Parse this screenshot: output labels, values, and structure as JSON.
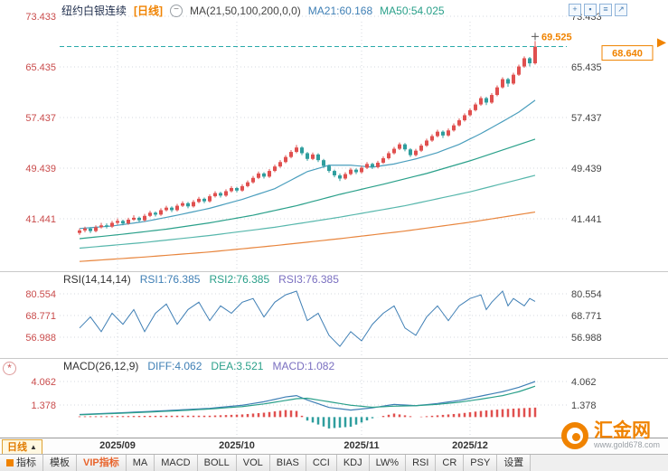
{
  "header": {
    "symbol": "纽约白银连续",
    "period_tag": "[日线]",
    "zoom_out_glyph": "−",
    "ma_settings": "MA(21,50,100,200,0,0)",
    "ma21_label": "MA21:60.168",
    "ma50_label": "MA50:54.025",
    "icons": [
      {
        "name": "crosshair-icon",
        "glyph": "+"
      },
      {
        "name": "grid-view-icon",
        "glyph": "▪"
      },
      {
        "name": "compare-icon",
        "glyph": "≡"
      },
      {
        "name": "expand-icon",
        "glyph": "↗"
      }
    ]
  },
  "rsi_header": {
    "title": "RSI(14,14,14)",
    "rsi1": "RSI1:76.385",
    "rsi2": "RSI2:76.385",
    "rsi3": "RSI3:76.385"
  },
  "macd_header": {
    "title": "MACD(26,12,9)",
    "diff": "DIFF:4.062",
    "dea": "DEA:3.521",
    "macd": "MACD:1.082"
  },
  "left_panel_icon_glyph": "*",
  "xaxis": {
    "period_button": "日线",
    "period_arrow": "▲"
  },
  "bottom_tabs": [
    {
      "label": "指标",
      "icon": "indicator-grid-icon"
    },
    {
      "label": "模板"
    },
    {
      "label": "VIP指标",
      "accent": true
    },
    {
      "label": "MA"
    },
    {
      "label": "MACD"
    },
    {
      "label": "BOLL"
    },
    {
      "label": "VOL"
    },
    {
      "label": "BIAS"
    },
    {
      "label": "CCI"
    },
    {
      "label": "KDJ"
    },
    {
      "label": "LW%"
    },
    {
      "label": "RSI"
    },
    {
      "label": "CR"
    },
    {
      "label": "PSY"
    },
    {
      "label": "设置"
    }
  ],
  "logo": {
    "name": "汇金网",
    "url": "www.gold678.com"
  },
  "colors": {
    "up": "#e0504f",
    "down": "#2f9e9e",
    "accent": "#f08300",
    "axis_left": "#c94b4b",
    "axis_right": "#444444",
    "grid": "#d4d9df",
    "last_line": "#2aa9a9",
    "rsi": "#3f7fb5",
    "diff": "#3f7fb5",
    "dea": "#2aa08a"
  },
  "chart_data": {
    "type": "candlestick",
    "title": "纽约白银连续 日线",
    "symbol": "纽约白银连续",
    "period": "日线",
    "y_ticks_main": [
      73.433,
      65.435,
      57.437,
      49.439,
      41.441
    ],
    "y_ticks_rsi": [
      80.554,
      68.771,
      56.988
    ],
    "y_ticks_macd": [
      4.062,
      1.378
    ],
    "last_price": 68.64,
    "session_high": 69.525,
    "ma_values": {
      "MA21": 60.168,
      "MA50": 54.025
    },
    "rsi_values": {
      "RSI1": 76.385,
      "RSI2": 76.385,
      "RSI3": 76.385
    },
    "macd_values": {
      "DIFF": 4.062,
      "DEA": 3.521,
      "MACD": 1.082
    },
    "month_labels": [
      "2025/09",
      "2025/10",
      "2025/11",
      "2025/12"
    ],
    "month_gridline_indices": [
      7,
      29,
      52,
      72
    ],
    "candles": [
      [
        39.2,
        39.9,
        38.9,
        39.6
      ],
      [
        39.6,
        40.2,
        39.3,
        39.9
      ],
      [
        39.9,
        40.1,
        39.2,
        39.5
      ],
      [
        39.5,
        40.4,
        39.3,
        40.1
      ],
      [
        40.1,
        40.8,
        39.9,
        40.4
      ],
      [
        40.4,
        40.7,
        39.9,
        40.2
      ],
      [
        40.2,
        41.1,
        40.0,
        40.8
      ],
      [
        40.8,
        41.5,
        40.5,
        41.1
      ],
      [
        41.1,
        41.3,
        40.4,
        40.7
      ],
      [
        40.7,
        41.6,
        40.5,
        41.3
      ],
      [
        41.3,
        42.0,
        41.1,
        41.6
      ],
      [
        41.6,
        41.8,
        40.9,
        41.2
      ],
      [
        41.2,
        42.2,
        41.0,
        41.9
      ],
      [
        41.9,
        42.7,
        41.7,
        42.4
      ],
      [
        42.4,
        42.6,
        41.8,
        42.1
      ],
      [
        42.1,
        43.1,
        41.9,
        42.8
      ],
      [
        42.8,
        43.5,
        42.6,
        43.2
      ],
      [
        43.2,
        43.4,
        42.5,
        42.8
      ],
      [
        42.8,
        43.8,
        42.6,
        43.5
      ],
      [
        43.5,
        44.2,
        43.3,
        43.9
      ],
      [
        43.9,
        44.1,
        43.1,
        43.4
      ],
      [
        43.4,
        44.4,
        43.2,
        44.1
      ],
      [
        44.1,
        44.9,
        43.9,
        44.6
      ],
      [
        44.6,
        44.8,
        43.9,
        44.2
      ],
      [
        44.2,
        45.3,
        44.0,
        45.0
      ],
      [
        45.0,
        45.8,
        44.8,
        45.5
      ],
      [
        45.5,
        45.7,
        44.8,
        45.1
      ],
      [
        45.1,
        46.1,
        44.9,
        45.8
      ],
      [
        45.8,
        46.6,
        45.6,
        46.3
      ],
      [
        46.3,
        46.5,
        45.6,
        45.9
      ],
      [
        45.9,
        46.9,
        45.7,
        46.6
      ],
      [
        46.6,
        47.5,
        46.4,
        47.2
      ],
      [
        47.2,
        48.2,
        47.0,
        47.9
      ],
      [
        47.9,
        48.9,
        47.7,
        48.6
      ],
      [
        48.6,
        48.8,
        47.8,
        48.1
      ],
      [
        48.1,
        49.3,
        47.9,
        49.0
      ],
      [
        49.0,
        50.0,
        48.8,
        49.7
      ],
      [
        49.7,
        50.7,
        49.5,
        50.4
      ],
      [
        50.4,
        51.5,
        50.2,
        51.2
      ],
      [
        51.2,
        52.3,
        51.0,
        52.0
      ],
      [
        52.0,
        53.1,
        51.8,
        52.7
      ],
      [
        52.7,
        52.9,
        51.5,
        51.8
      ],
      [
        51.8,
        52.0,
        50.6,
        50.9
      ],
      [
        50.9,
        51.9,
        50.7,
        51.6
      ],
      [
        51.6,
        51.8,
        50.4,
        50.7
      ],
      [
        50.7,
        50.9,
        49.5,
        49.8
      ],
      [
        49.8,
        50.0,
        48.7,
        49.0
      ],
      [
        49.0,
        49.2,
        48.0,
        48.3
      ],
      [
        48.3,
        48.6,
        47.4,
        47.8
      ],
      [
        47.8,
        48.8,
        47.6,
        48.5
      ],
      [
        48.5,
        49.5,
        48.3,
        49.2
      ],
      [
        49.2,
        49.4,
        48.5,
        48.8
      ],
      [
        48.8,
        49.8,
        48.6,
        49.5
      ],
      [
        49.5,
        50.4,
        49.3,
        50.1
      ],
      [
        50.1,
        50.3,
        49.3,
        49.6
      ],
      [
        49.6,
        50.6,
        49.4,
        50.3
      ],
      [
        50.3,
        51.3,
        50.1,
        51.0
      ],
      [
        51.0,
        52.1,
        50.8,
        51.8
      ],
      [
        51.8,
        52.8,
        51.6,
        52.5
      ],
      [
        52.5,
        53.5,
        52.3,
        53.2
      ],
      [
        53.2,
        53.4,
        52.1,
        52.4
      ],
      [
        52.4,
        52.6,
        51.2,
        51.5
      ],
      [
        51.5,
        52.5,
        51.3,
        52.2
      ],
      [
        52.2,
        53.3,
        52.0,
        53.0
      ],
      [
        53.0,
        54.1,
        52.8,
        53.8
      ],
      [
        53.8,
        54.8,
        53.6,
        54.5
      ],
      [
        54.5,
        55.5,
        54.3,
        55.2
      ],
      [
        55.2,
        55.4,
        54.2,
        54.6
      ],
      [
        54.6,
        55.7,
        54.4,
        55.4
      ],
      [
        55.4,
        56.5,
        55.2,
        56.2
      ],
      [
        56.2,
        57.3,
        56.0,
        57.0
      ],
      [
        57.0,
        58.1,
        56.8,
        57.8
      ],
      [
        57.8,
        58.9,
        57.6,
        58.6
      ],
      [
        58.6,
        59.8,
        58.4,
        59.5
      ],
      [
        59.5,
        60.8,
        59.3,
        60.5
      ],
      [
        60.5,
        60.7,
        59.4,
        59.8
      ],
      [
        59.8,
        61.3,
        59.6,
        61.0
      ],
      [
        61.0,
        62.5,
        60.8,
        62.2
      ],
      [
        62.2,
        63.8,
        62.0,
        63.5
      ],
      [
        63.5,
        63.7,
        62.3,
        62.8
      ],
      [
        62.8,
        64.5,
        62.6,
        64.2
      ],
      [
        64.2,
        65.8,
        64.0,
        65.5
      ],
      [
        65.5,
        67.1,
        65.3,
        66.8
      ],
      [
        66.8,
        67.0,
        65.5,
        66.0
      ],
      [
        66.0,
        69.525,
        65.8,
        68.64
      ]
    ],
    "moving_averages": [
      {
        "name": "MA21",
        "color": "#4a9ebd",
        "points": [
          [
            0,
            39.9
          ],
          [
            6,
            40.3
          ],
          [
            12,
            41.0
          ],
          [
            18,
            42.0
          ],
          [
            24,
            43.1
          ],
          [
            30,
            44.5
          ],
          [
            36,
            46.2
          ],
          [
            42,
            48.9
          ],
          [
            46,
            49.9
          ],
          [
            50,
            49.9
          ],
          [
            54,
            49.6
          ],
          [
            58,
            50.1
          ],
          [
            62,
            50.9
          ],
          [
            66,
            51.9
          ],
          [
            70,
            53.2
          ],
          [
            74,
            54.9
          ],
          [
            78,
            56.8
          ],
          [
            81,
            58.3
          ],
          [
            84,
            60.168
          ]
        ]
      },
      {
        "name": "MA50",
        "color": "#2aa08a",
        "points": [
          [
            0,
            38.3
          ],
          [
            8,
            39.0
          ],
          [
            16,
            39.8
          ],
          [
            24,
            40.8
          ],
          [
            32,
            42.0
          ],
          [
            40,
            43.5
          ],
          [
            48,
            45.3
          ],
          [
            56,
            46.9
          ],
          [
            64,
            48.6
          ],
          [
            72,
            50.6
          ],
          [
            78,
            52.3
          ],
          [
            84,
            54.025
          ]
        ]
      },
      {
        "name": "MA100",
        "color": "#57b7ac",
        "points": [
          [
            0,
            36.8
          ],
          [
            12,
            37.7
          ],
          [
            24,
            38.8
          ],
          [
            36,
            40.1
          ],
          [
            48,
            41.7
          ],
          [
            60,
            43.5
          ],
          [
            72,
            45.7
          ],
          [
            84,
            48.3
          ]
        ]
      },
      {
        "name": "MA200",
        "color": "#e8853d",
        "points": [
          [
            0,
            34.7
          ],
          [
            12,
            35.4
          ],
          [
            24,
            36.2
          ],
          [
            36,
            37.2
          ],
          [
            48,
            38.3
          ],
          [
            60,
            39.5
          ],
          [
            72,
            40.9
          ],
          [
            84,
            42.5
          ]
        ]
      }
    ],
    "rsi_points": [
      [
        0,
        62
      ],
      [
        2,
        68
      ],
      [
        4,
        60
      ],
      [
        6,
        70
      ],
      [
        8,
        64
      ],
      [
        10,
        72
      ],
      [
        12,
        60
      ],
      [
        14,
        70
      ],
      [
        16,
        75
      ],
      [
        18,
        64
      ],
      [
        20,
        72
      ],
      [
        22,
        76
      ],
      [
        24,
        66
      ],
      [
        26,
        74
      ],
      [
        28,
        70
      ],
      [
        30,
        76
      ],
      [
        32,
        78
      ],
      [
        34,
        68
      ],
      [
        36,
        76
      ],
      [
        38,
        80
      ],
      [
        40,
        82
      ],
      [
        42,
        66
      ],
      [
        44,
        70
      ],
      [
        46,
        58
      ],
      [
        48,
        52
      ],
      [
        50,
        60
      ],
      [
        52,
        55
      ],
      [
        54,
        64
      ],
      [
        56,
        70
      ],
      [
        58,
        74
      ],
      [
        60,
        62
      ],
      [
        62,
        58
      ],
      [
        64,
        68
      ],
      [
        66,
        74
      ],
      [
        68,
        66
      ],
      [
        70,
        74
      ],
      [
        72,
        78
      ],
      [
        74,
        80
      ],
      [
        75,
        72
      ],
      [
        76,
        76
      ],
      [
        78,
        82
      ],
      [
        79,
        74
      ],
      [
        80,
        78
      ],
      [
        82,
        74
      ],
      [
        83,
        78
      ],
      [
        84,
        76.4
      ]
    ],
    "macd": {
      "diff_points": [
        [
          0,
          0.3
        ],
        [
          6,
          0.45
        ],
        [
          12,
          0.62
        ],
        [
          18,
          0.8
        ],
        [
          24,
          1.0
        ],
        [
          30,
          1.35
        ],
        [
          34,
          1.75
        ],
        [
          38,
          2.3
        ],
        [
          40,
          2.45
        ],
        [
          42,
          1.95
        ],
        [
          46,
          1.1
        ],
        [
          50,
          0.8
        ],
        [
          54,
          1.05
        ],
        [
          58,
          1.45
        ],
        [
          62,
          1.3
        ],
        [
          66,
          1.55
        ],
        [
          70,
          1.9
        ],
        [
          74,
          2.4
        ],
        [
          78,
          2.9
        ],
        [
          81,
          3.4
        ],
        [
          84,
          4.062
        ]
      ],
      "dea_points": [
        [
          0,
          0.26
        ],
        [
          6,
          0.4
        ],
        [
          12,
          0.55
        ],
        [
          18,
          0.72
        ],
        [
          24,
          0.92
        ],
        [
          30,
          1.2
        ],
        [
          34,
          1.5
        ],
        [
          38,
          1.9
        ],
        [
          40,
          2.1
        ],
        [
          42,
          2.15
        ],
        [
          46,
          1.75
        ],
        [
          50,
          1.35
        ],
        [
          54,
          1.12
        ],
        [
          58,
          1.25
        ],
        [
          62,
          1.3
        ],
        [
          66,
          1.45
        ],
        [
          70,
          1.7
        ],
        [
          74,
          2.05
        ],
        [
          78,
          2.45
        ],
        [
          81,
          2.9
        ],
        [
          84,
          3.521
        ]
      ]
    }
  }
}
